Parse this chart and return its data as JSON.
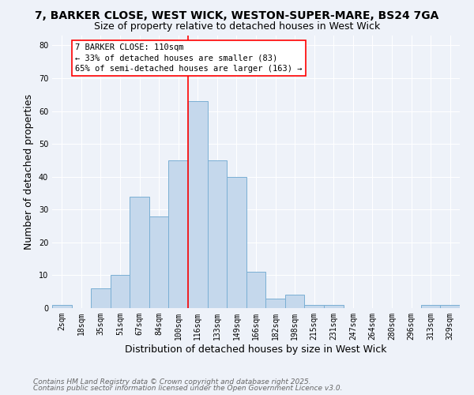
{
  "title_line1": "7, BARKER CLOSE, WEST WICK, WESTON-SUPER-MARE, BS24 7GA",
  "title_line2": "Size of property relative to detached houses in West Wick",
  "xlabel": "Distribution of detached houses by size in West Wick",
  "ylabel": "Number of detached properties",
  "categories": [
    "2sqm",
    "18sqm",
    "35sqm",
    "51sqm",
    "67sqm",
    "84sqm",
    "100sqm",
    "116sqm",
    "133sqm",
    "149sqm",
    "166sqm",
    "182sqm",
    "198sqm",
    "215sqm",
    "231sqm",
    "247sqm",
    "264sqm",
    "280sqm",
    "296sqm",
    "313sqm",
    "329sqm"
  ],
  "values": [
    1,
    0,
    6,
    10,
    34,
    28,
    45,
    63,
    45,
    40,
    11,
    3,
    4,
    1,
    1,
    0,
    0,
    0,
    0,
    1,
    1
  ],
  "bar_color": "#c5d8ec",
  "bar_edge_color": "#7aafd4",
  "vline_x": 6.5,
  "vline_color": "red",
  "annotation_title": "7 BARKER CLOSE: 110sqm",
  "annotation_line2": "← 33% of detached houses are smaller (83)",
  "annotation_line3": "65% of semi-detached houses are larger (163) →",
  "annotation_box_color": "white",
  "annotation_box_edge": "red",
  "ylim": [
    0,
    83
  ],
  "yticks": [
    0,
    10,
    20,
    30,
    40,
    50,
    60,
    70,
    80
  ],
  "footer_line1": "Contains HM Land Registry data © Crown copyright and database right 2025.",
  "footer_line2": "Contains public sector information licensed under the Open Government Licence v3.0.",
  "background_color": "#eef2f9",
  "grid_color": "white",
  "title_fontsize": 10,
  "subtitle_fontsize": 9,
  "xlabel_fontsize": 9,
  "ylabel_fontsize": 9,
  "tick_fontsize": 7,
  "annotation_fontsize": 7.5,
  "footer_fontsize": 6.5
}
